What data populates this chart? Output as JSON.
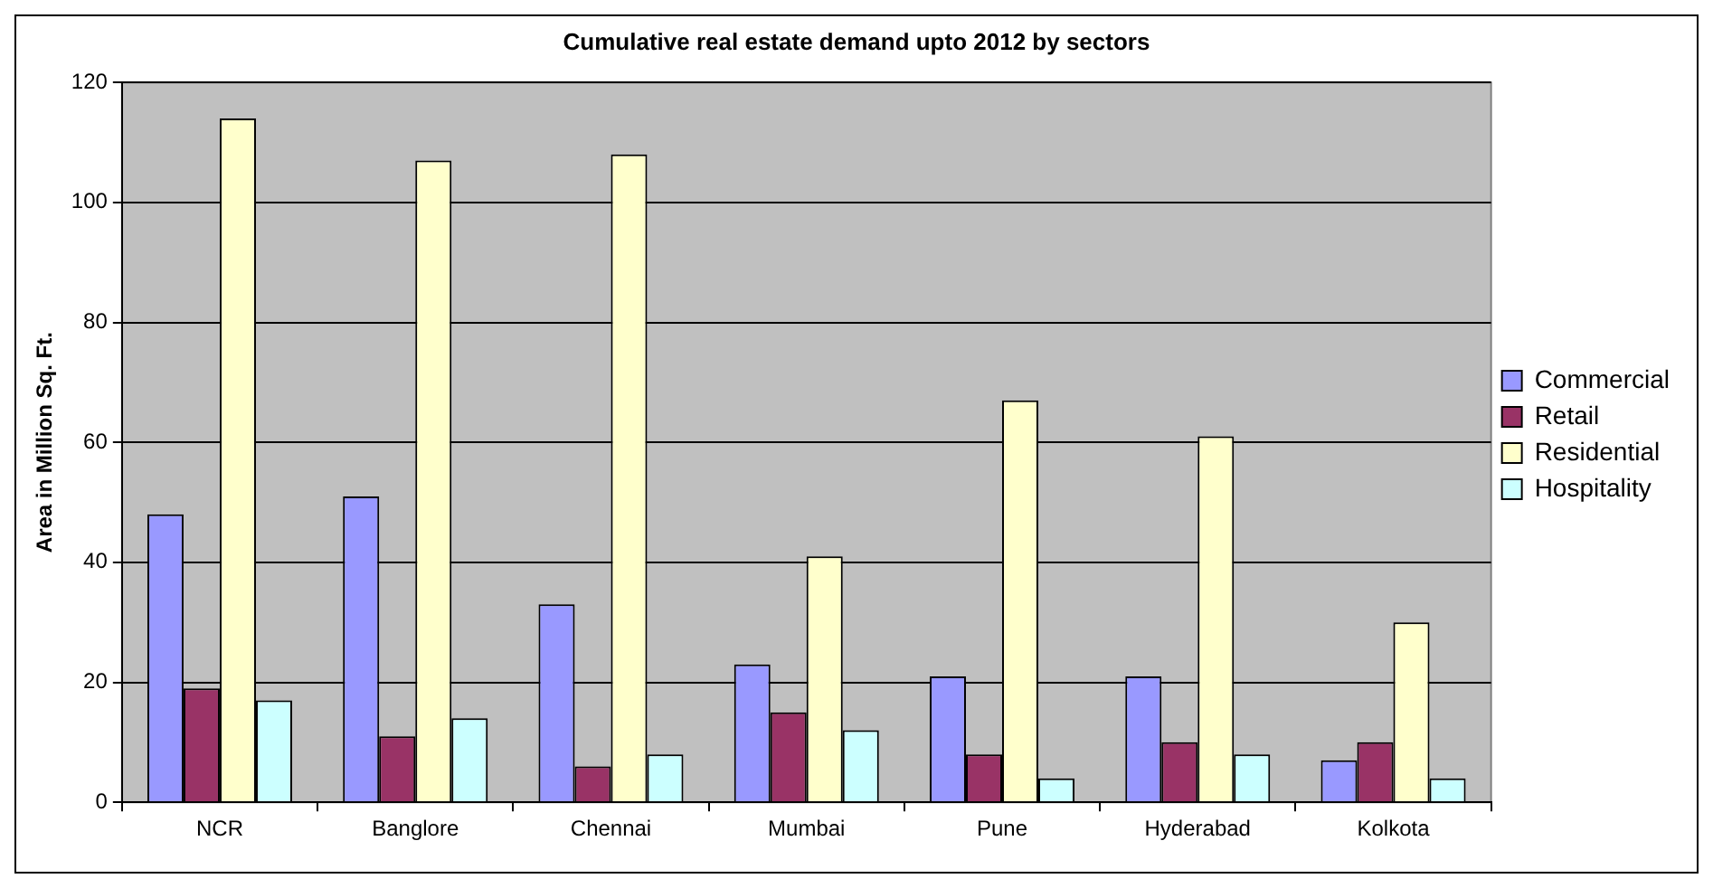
{
  "chart_data": {
    "type": "bar",
    "title": "Cumulative real estate demand upto 2012 by sectors",
    "ylabel": "Area in Million Sq. Ft.",
    "categories": [
      "NCR",
      "Banglore",
      "Chennai",
      "Mumbai",
      "Pune",
      "Hyderabad",
      "Kolkota"
    ],
    "series": [
      {
        "name": "Commercial",
        "color": "#9999ff",
        "values": [
          48,
          51,
          33,
          23,
          21,
          21,
          7
        ]
      },
      {
        "name": "Retail",
        "color": "#993366",
        "values": [
          19,
          11,
          6,
          15,
          8,
          10,
          10
        ]
      },
      {
        "name": "Residential",
        "color": "#ffffcc",
        "values": [
          114,
          107,
          108,
          41,
          67,
          61,
          30
        ]
      },
      {
        "name": "Hospitality",
        "color": "#ccffff",
        "values": [
          17,
          14,
          8,
          12,
          4,
          8,
          4
        ]
      }
    ],
    "ylim": [
      0,
      120
    ],
    "yticks": [
      0,
      20,
      40,
      60,
      80,
      100,
      120
    ],
    "grid": "y",
    "legend": "right"
  }
}
